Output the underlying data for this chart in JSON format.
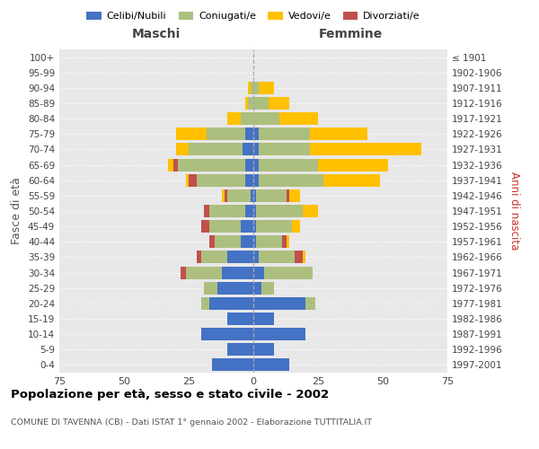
{
  "age_groups": [
    "0-4",
    "5-9",
    "10-14",
    "15-19",
    "20-24",
    "25-29",
    "30-34",
    "35-39",
    "40-44",
    "45-49",
    "50-54",
    "55-59",
    "60-64",
    "65-69",
    "70-74",
    "75-79",
    "80-84",
    "85-89",
    "90-94",
    "95-99",
    "100+"
  ],
  "birth_years": [
    "1997-2001",
    "1992-1996",
    "1987-1991",
    "1982-1986",
    "1977-1981",
    "1972-1976",
    "1967-1971",
    "1962-1966",
    "1957-1961",
    "1952-1956",
    "1947-1951",
    "1942-1946",
    "1937-1941",
    "1932-1936",
    "1927-1931",
    "1922-1926",
    "1917-1921",
    "1912-1916",
    "1907-1911",
    "1902-1906",
    "≤ 1901"
  ],
  "maschi": {
    "celibi": [
      16,
      10,
      20,
      10,
      17,
      14,
      12,
      10,
      5,
      5,
      3,
      1,
      3,
      3,
      4,
      3,
      0,
      0,
      0,
      0,
      0
    ],
    "coniugati": [
      0,
      0,
      0,
      0,
      3,
      5,
      14,
      10,
      10,
      12,
      14,
      9,
      19,
      26,
      21,
      15,
      5,
      2,
      1,
      0,
      0
    ],
    "vedovi": [
      0,
      0,
      0,
      0,
      0,
      0,
      0,
      0,
      0,
      0,
      0,
      1,
      1,
      2,
      5,
      12,
      5,
      1,
      1,
      0,
      0
    ],
    "divorziati": [
      0,
      0,
      0,
      0,
      0,
      0,
      2,
      2,
      2,
      3,
      2,
      1,
      3,
      2,
      0,
      0,
      0,
      0,
      0,
      0,
      0
    ]
  },
  "femmine": {
    "nubili": [
      14,
      8,
      20,
      8,
      20,
      3,
      4,
      2,
      1,
      1,
      1,
      1,
      2,
      2,
      2,
      2,
      0,
      0,
      0,
      0,
      0
    ],
    "coniugate": [
      0,
      0,
      0,
      0,
      4,
      5,
      19,
      14,
      10,
      14,
      18,
      12,
      25,
      23,
      20,
      20,
      10,
      6,
      2,
      0,
      0
    ],
    "vedove": [
      0,
      0,
      0,
      0,
      0,
      0,
      0,
      1,
      1,
      3,
      6,
      4,
      22,
      27,
      43,
      22,
      15,
      8,
      6,
      0,
      0
    ],
    "divorziate": [
      0,
      0,
      0,
      0,
      0,
      0,
      0,
      3,
      2,
      0,
      0,
      1,
      0,
      0,
      0,
      0,
      0,
      0,
      0,
      0,
      0
    ]
  },
  "color_celibi": "#4472C4",
  "color_coniugati": "#ADBF7E",
  "color_vedovi": "#FFC000",
  "color_divorziati": "#C0504D",
  "xlim": 75,
  "title": "Popolazione per età, sesso e stato civile - 2002",
  "subtitle": "COMUNE DI TAVENNA (CB) - Dati ISTAT 1° gennaio 2002 - Elaborazione TUTTITALIA.IT",
  "ylabel_left": "Fasce di età",
  "ylabel_right": "Anni di nascita",
  "xlabel_maschi": "Maschi",
  "xlabel_femmine": "Femmine",
  "bg_color": "#e8e8e8"
}
